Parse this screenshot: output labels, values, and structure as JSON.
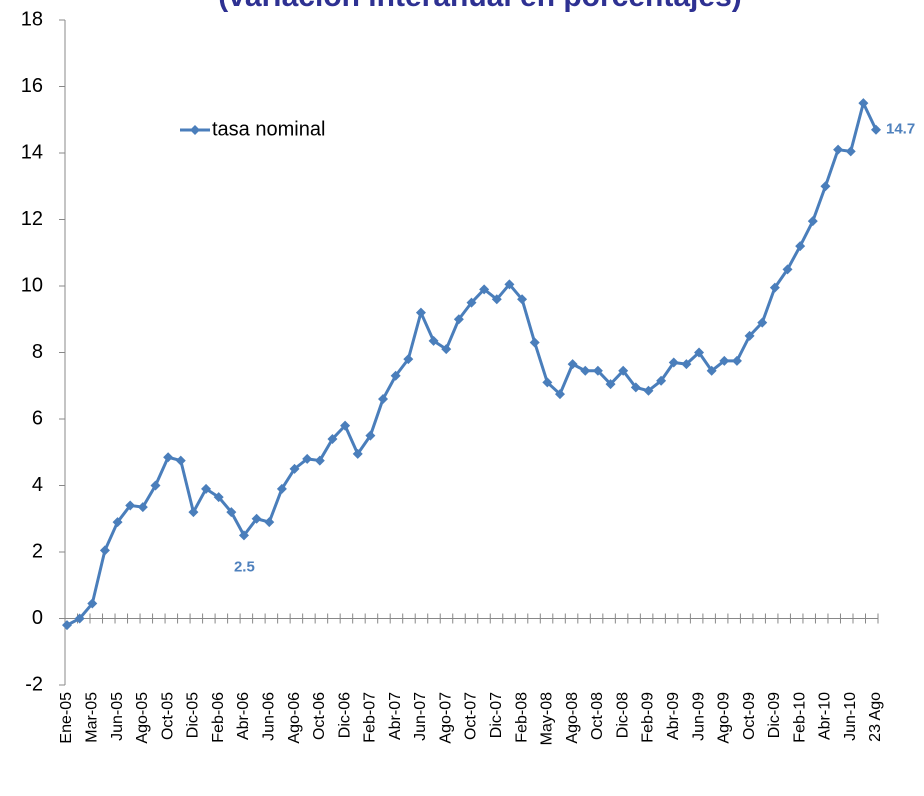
{
  "chart_data": {
    "type": "line",
    "title": "(variación interanual en porcentajes)",
    "categories": [
      "Ene-05",
      null,
      "Mar-05",
      null,
      "Jun-05",
      null,
      "Ago-05",
      null,
      "Oct-05",
      null,
      "Dic-05",
      null,
      "Feb-06",
      null,
      "Abr-06",
      null,
      "Jun-06",
      null,
      "Ago-06",
      null,
      "Oct-06",
      null,
      "Dic-06",
      null,
      "Feb-07",
      null,
      "Abr-07",
      null,
      "Jun-07",
      null,
      "Ago-07",
      null,
      "Oct-07",
      null,
      "Dic-07",
      null,
      "Feb-08",
      null,
      "May-08",
      null,
      "Ago-08",
      null,
      "Oct-08",
      null,
      "Dic-08",
      null,
      "Feb-09",
      null,
      "Abr-09",
      null,
      "Jun-09",
      null,
      "Ago-09",
      null,
      "Oct-09",
      null,
      "Dic-09",
      null,
      "Feb-10",
      null,
      "Abr-10",
      null,
      "Jun-10",
      null,
      "23 Ago"
    ],
    "series": [
      {
        "name": "tasa nominal",
        "color": "#4a7ebb",
        "values": [
          -0.2,
          0.0,
          0.45,
          2.05,
          2.9,
          3.4,
          3.35,
          4.0,
          4.85,
          4.75,
          3.2,
          3.9,
          3.65,
          3.2,
          2.5,
          3.0,
          2.9,
          3.9,
          4.5,
          4.8,
          4.75,
          5.4,
          5.8,
          4.95,
          5.5,
          6.6,
          7.3,
          7.8,
          9.2,
          8.35,
          8.1,
          9.0,
          9.5,
          9.9,
          9.6,
          10.05,
          9.6,
          8.3,
          7.1,
          6.75,
          7.65,
          7.45,
          7.45,
          7.05,
          7.45,
          6.95,
          6.85,
          7.15,
          7.7,
          7.65,
          8.0,
          7.45,
          7.75,
          7.75,
          8.5,
          8.9,
          9.95,
          10.5,
          11.2,
          11.95,
          13.0,
          14.1,
          14.05,
          15.5,
          14.7
        ]
      }
    ],
    "ylim": [
      -2,
      18
    ],
    "yticks": [
      -2,
      0,
      2,
      4,
      6,
      8,
      10,
      12,
      14,
      16,
      18
    ],
    "labeled_points": [
      14,
      64
    ],
    "legend": "upper-left",
    "grid": false
  }
}
